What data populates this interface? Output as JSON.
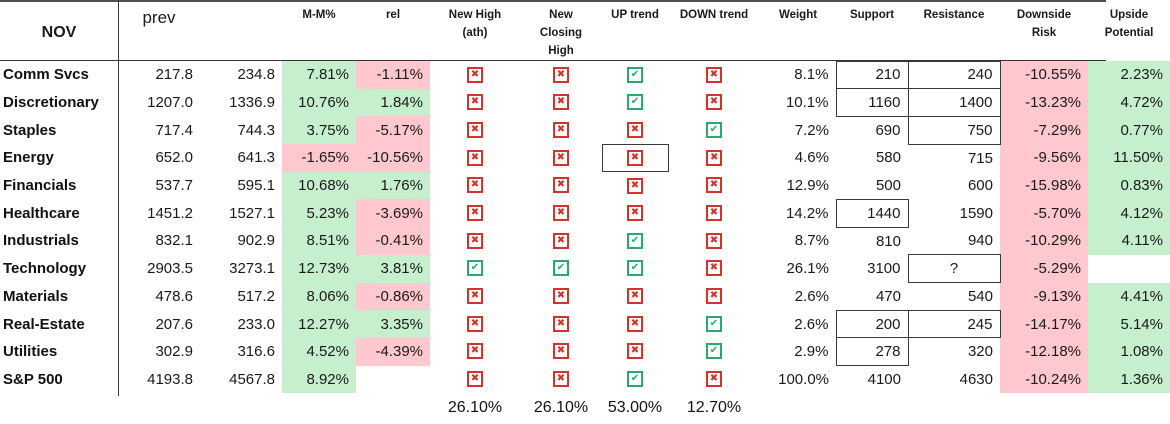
{
  "table": {
    "title": "NOV",
    "headers": {
      "prev": "prev",
      "current": "",
      "mm": "M-M%",
      "rel": "rel",
      "new_high": "New High\n(ath)",
      "new_closing_high": "New\nClosing\nHigh",
      "up_trend": "UP trend",
      "down_trend": "DOWN trend",
      "weight": "Weight",
      "support": "Support",
      "resistance": "Resistance",
      "downside_risk": "Downside\nRisk",
      "upside_potential": "Upside\nPotential"
    },
    "rows": [
      {
        "name": "Comm Svcs",
        "prev": "217.8",
        "curr": "234.8",
        "mm": "7.81%",
        "mm_bg": "green",
        "rel": "-1.11%",
        "rel_bg": "red",
        "new_high": "x",
        "new_closing": "x",
        "up_trend": "check",
        "down_trend": "x",
        "up_boxed": false,
        "weight": "8.1%",
        "support": "210",
        "support_boxed": true,
        "resistance": "240",
        "resistance_boxed": true,
        "resistance_centered": false,
        "downside": "-10.55%",
        "upside": "2.23%"
      },
      {
        "name": "Discretionary",
        "prev": "1207.0",
        "curr": "1336.9",
        "mm": "10.76%",
        "mm_bg": "green",
        "rel": "1.84%",
        "rel_bg": "green",
        "new_high": "x",
        "new_closing": "x",
        "up_trend": "check",
        "down_trend": "x",
        "up_boxed": false,
        "weight": "10.1%",
        "support": "1160",
        "support_boxed": true,
        "resistance": "1400",
        "resistance_boxed": true,
        "resistance_centered": false,
        "downside": "-13.23%",
        "upside": "4.72%"
      },
      {
        "name": "Staples",
        "prev": "717.4",
        "curr": "744.3",
        "mm": "3.75%",
        "mm_bg": "green",
        "rel": "-5.17%",
        "rel_bg": "red",
        "new_high": "x",
        "new_closing": "x",
        "up_trend": "x",
        "down_trend": "check",
        "up_boxed": false,
        "weight": "7.2%",
        "support": "690",
        "support_boxed": false,
        "resistance": "750",
        "resistance_boxed": true,
        "resistance_centered": false,
        "downside": "-7.29%",
        "upside": "0.77%"
      },
      {
        "name": "Energy",
        "prev": "652.0",
        "curr": "641.3",
        "mm": "-1.65%",
        "mm_bg": "red",
        "rel": "-10.56%",
        "rel_bg": "red",
        "new_high": "x",
        "new_closing": "x",
        "up_trend": "x",
        "down_trend": "x",
        "up_boxed": true,
        "weight": "4.6%",
        "support": "580",
        "support_boxed": false,
        "resistance": "715",
        "resistance_boxed": false,
        "resistance_centered": false,
        "downside": "-9.56%",
        "upside": "11.50%"
      },
      {
        "name": "Financials",
        "prev": "537.7",
        "curr": "595.1",
        "mm": "10.68%",
        "mm_bg": "green",
        "rel": "1.76%",
        "rel_bg": "green",
        "new_high": "x",
        "new_closing": "x",
        "up_trend": "x",
        "down_trend": "x",
        "up_boxed": false,
        "weight": "12.9%",
        "support": "500",
        "support_boxed": false,
        "resistance": "600",
        "resistance_boxed": false,
        "resistance_centered": false,
        "downside": "-15.98%",
        "upside": "0.83%"
      },
      {
        "name": "Healthcare",
        "prev": "1451.2",
        "curr": "1527.1",
        "mm": "5.23%",
        "mm_bg": "green",
        "rel": "-3.69%",
        "rel_bg": "red",
        "new_high": "x",
        "new_closing": "x",
        "up_trend": "x",
        "down_trend": "x",
        "up_boxed": false,
        "weight": "14.2%",
        "support": "1440",
        "support_boxed": true,
        "resistance": "1590",
        "resistance_boxed": false,
        "resistance_centered": false,
        "downside": "-5.70%",
        "upside": "4.12%"
      },
      {
        "name": "Industrials",
        "prev": "832.1",
        "curr": "902.9",
        "mm": "8.51%",
        "mm_bg": "green",
        "rel": "-0.41%",
        "rel_bg": "red",
        "new_high": "x",
        "new_closing": "x",
        "up_trend": "check",
        "down_trend": "x",
        "up_boxed": false,
        "weight": "8.7%",
        "support": "810",
        "support_boxed": false,
        "resistance": "940",
        "resistance_boxed": false,
        "resistance_centered": false,
        "downside": "-10.29%",
        "upside": "4.11%"
      },
      {
        "name": "Technology",
        "prev": "2903.5",
        "curr": "3273.1",
        "mm": "12.73%",
        "mm_bg": "green",
        "rel": "3.81%",
        "rel_bg": "green",
        "new_high": "check",
        "new_closing": "check",
        "up_trend": "check",
        "down_trend": "x",
        "up_boxed": false,
        "weight": "26.1%",
        "support": "3100",
        "support_boxed": false,
        "resistance": "?",
        "resistance_boxed": true,
        "resistance_centered": true,
        "downside": "-5.29%",
        "upside": ""
      },
      {
        "name": "Materials",
        "prev": "478.6",
        "curr": "517.2",
        "mm": "8.06%",
        "mm_bg": "green",
        "rel": "-0.86%",
        "rel_bg": "red",
        "new_high": "x",
        "new_closing": "x",
        "up_trend": "x",
        "down_trend": "x",
        "up_boxed": false,
        "weight": "2.6%",
        "support": "470",
        "support_boxed": false,
        "resistance": "540",
        "resistance_boxed": false,
        "resistance_centered": false,
        "downside": "-9.13%",
        "upside": "4.41%"
      },
      {
        "name": "Real-Estate",
        "prev": "207.6",
        "curr": "233.0",
        "mm": "12.27%",
        "mm_bg": "green",
        "rel": "3.35%",
        "rel_bg": "green",
        "new_high": "x",
        "new_closing": "x",
        "up_trend": "x",
        "down_trend": "check",
        "up_boxed": false,
        "weight": "2.6%",
        "support": "200",
        "support_boxed": true,
        "resistance": "245",
        "resistance_boxed": true,
        "resistance_centered": false,
        "downside": "-14.17%",
        "upside": "5.14%"
      },
      {
        "name": "Utilities",
        "prev": "302.9",
        "curr": "316.6",
        "mm": "4.52%",
        "mm_bg": "green",
        "rel": "-4.39%",
        "rel_bg": "red",
        "new_high": "x",
        "new_closing": "x",
        "up_trend": "x",
        "down_trend": "check",
        "up_boxed": false,
        "weight": "2.9%",
        "support": "278",
        "support_boxed": true,
        "resistance": "320",
        "resistance_boxed": false,
        "resistance_centered": false,
        "downside": "-12.18%",
        "upside": "1.08%"
      },
      {
        "name": "S&P 500",
        "prev": "4193.8",
        "curr": "4567.8",
        "mm": "8.92%",
        "mm_bg": "green",
        "rel": "",
        "rel_bg": null,
        "new_high": "x",
        "new_closing": "x",
        "up_trend": "check",
        "down_trend": "x",
        "up_boxed": false,
        "weight": "100.0%",
        "support": "4100",
        "support_boxed": false,
        "resistance": "4630",
        "resistance_boxed": false,
        "resistance_centered": false,
        "downside": "-10.24%",
        "upside": "1.36%"
      }
    ],
    "footer": {
      "new_high": "26.10%",
      "new_closing_high": "26.10%",
      "up_trend": "53.00%",
      "down_trend": "12.70%"
    }
  },
  "icons": {
    "check": "✔",
    "cross": "✖"
  },
  "colors": {
    "green_bg": "#c6efce",
    "green_text": "#217a3c",
    "red_bg": "#ffc7ce",
    "red_text": "#ae2b3e",
    "icon_green": "#2aa96d",
    "icon_red": "#d0342c"
  }
}
